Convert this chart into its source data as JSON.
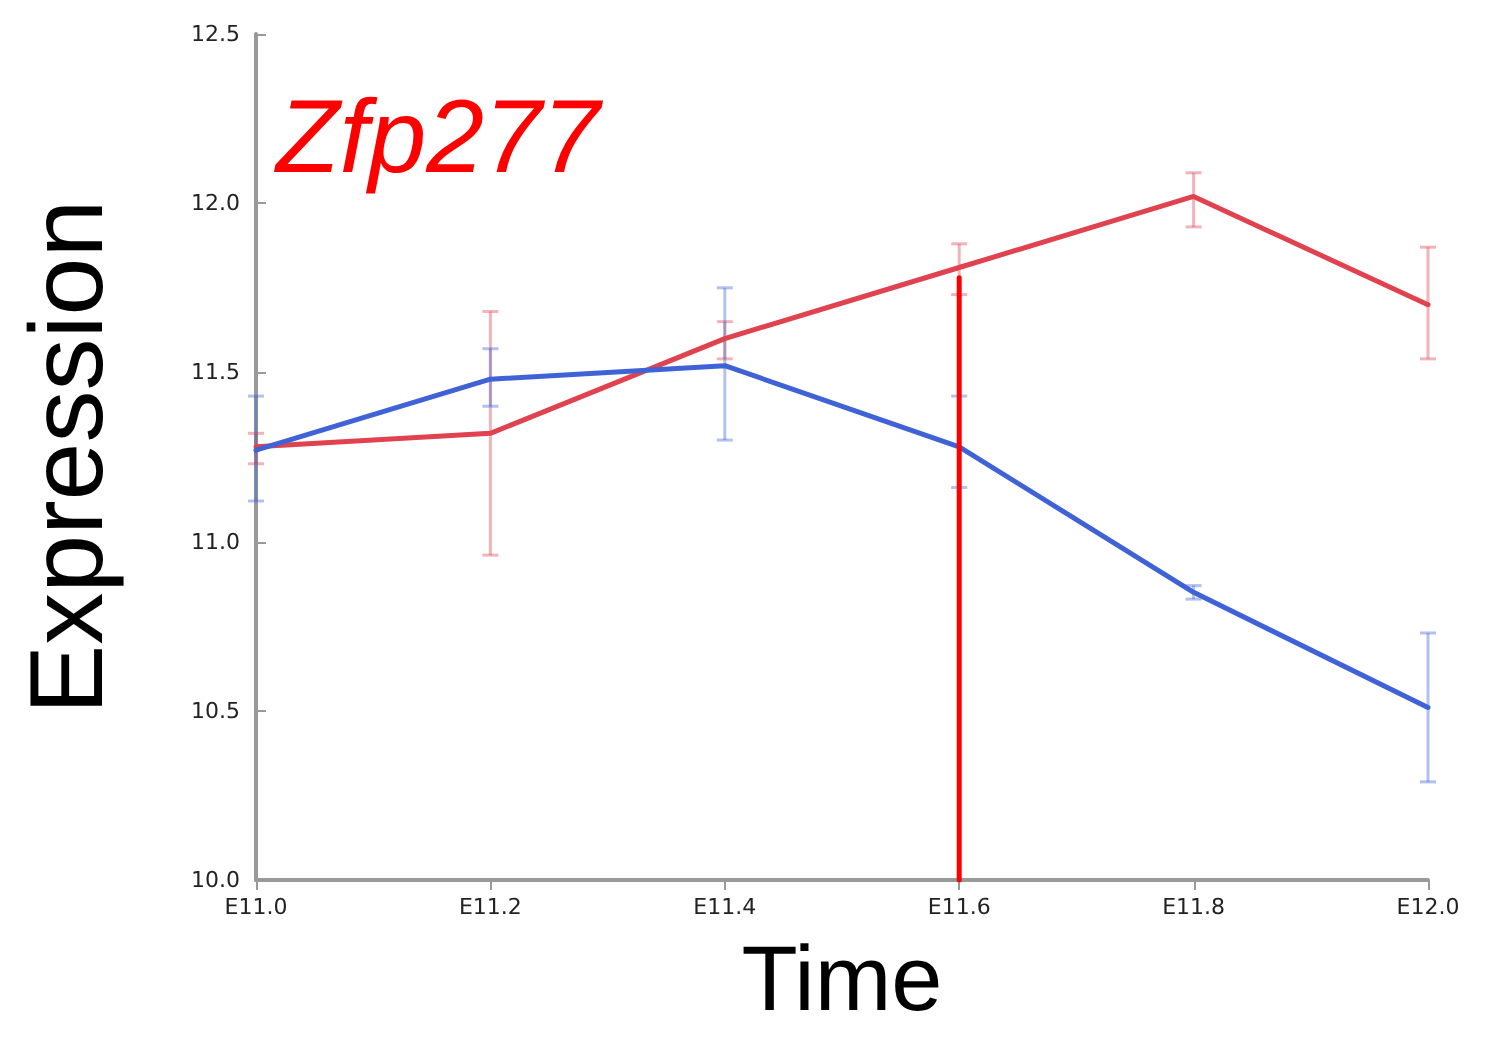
{
  "chart_data": {
    "type": "line",
    "title": "Zfp277",
    "xlabel": "Time",
    "ylabel": "Expression",
    "categories": [
      "E11.0",
      "E11.2",
      "E11.4",
      "E11.6",
      "E11.8",
      "E12.0"
    ],
    "series": [
      {
        "color": "#e0434f",
        "values": [
          11.28,
          11.32,
          11.6,
          11.81,
          12.02,
          11.7
        ],
        "errors": [
          [
            11.23,
            11.32
          ],
          [
            10.96,
            11.68
          ],
          [
            11.54,
            11.65
          ],
          [
            11.73,
            11.88
          ],
          [
            11.93,
            12.09
          ],
          [
            11.54,
            11.87
          ]
        ]
      },
      {
        "color": "#3f63d6",
        "values": [
          11.27,
          11.48,
          11.52,
          11.28,
          10.85,
          10.51
        ],
        "errors": [
          [
            11.12,
            11.43
          ],
          [
            11.4,
            11.57
          ],
          [
            11.3,
            11.75
          ],
          [
            11.16,
            11.43
          ],
          [
            10.83,
            10.87
          ],
          [
            10.29,
            10.73
          ]
        ]
      },
      {
        "color": "#ff0000",
        "x": [
          "E11.6",
          "E11.6"
        ],
        "values": [
          10,
          11.78
        ]
      }
    ],
    "ylim": [
      10,
      12.5
    ],
    "yticks": [
      {
        "value": 10,
        "label": "10.0"
      },
      {
        "value": 10.5,
        "label": "10.5"
      },
      {
        "value": 11,
        "label": "11.0"
      },
      {
        "value": 11.5,
        "label": "11.5"
      },
      {
        "value": 12,
        "label": "12.0"
      },
      {
        "value": 12.5,
        "label": "12.5"
      }
    ],
    "grid": false,
    "marker": "none",
    "line_style": "solid"
  }
}
